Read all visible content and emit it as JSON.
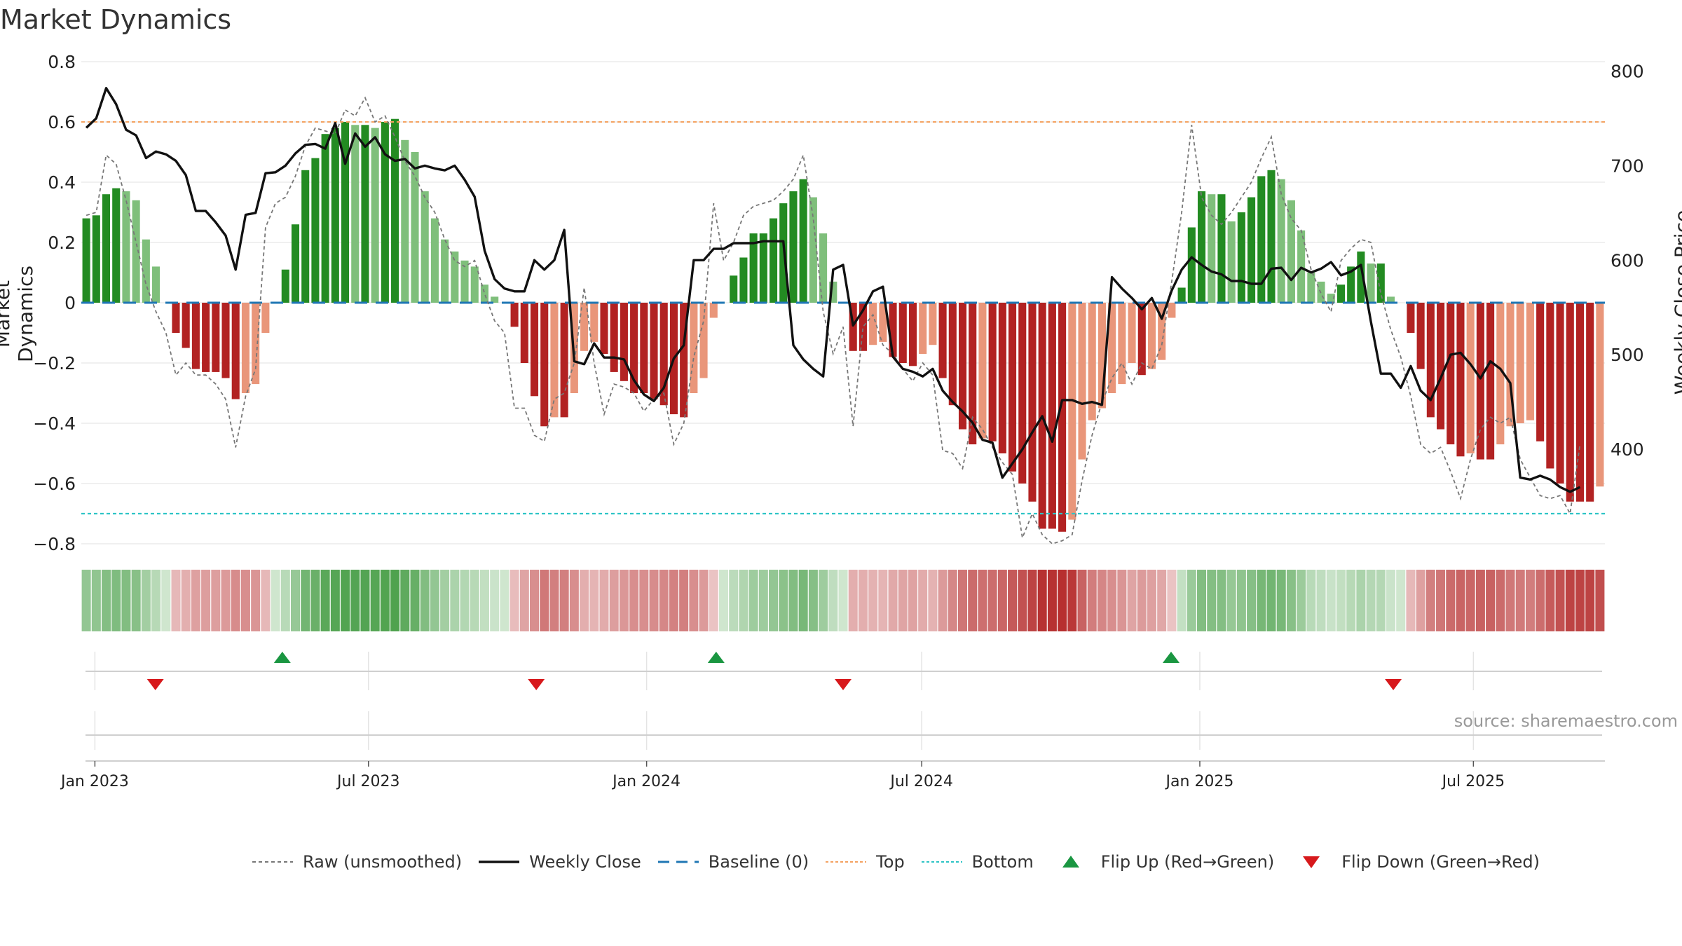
{
  "title": "Market Dynamics",
  "source": "source: sharemaestro.com",
  "colors": {
    "green_strong": "#238b22",
    "green_light": "#7fbf7b",
    "red_strong": "#b22222",
    "red_light": "#e9967a",
    "close": "#111111",
    "raw": "#777777",
    "baseline": "#1f77b4",
    "top": "#f4a261",
    "bottom": "#2ec4c6",
    "flip_up": "#1a9641",
    "flip_down": "#d7191c"
  },
  "chart_data": {
    "type": "bar",
    "title": "Market Dynamics",
    "ylabel": "Market Dynamics",
    "y2label": "Weekly Close Price",
    "ylim": [
      -0.8,
      0.8
    ],
    "y2lim": [
      300,
      810
    ],
    "yticks": [
      "0.8",
      "0.6",
      "0.4",
      "0.2",
      "0",
      "−0.2",
      "−0.4",
      "−0.6",
      "−0.8"
    ],
    "y2ticks": [
      "800",
      "700",
      "600",
      "500",
      "400"
    ],
    "x_start": "2022-12-23",
    "x_end": "2025-09-26",
    "xtick_labels": [
      "Jan 2023",
      "Jul 2023",
      "Jan 2024",
      "Jul 2024",
      "Jan 2025",
      "Jul 2025"
    ],
    "top_line": 0.6,
    "bottom_line": -0.7,
    "baseline": 0,
    "flip_up_dates": [
      "2023-05-05",
      "2024-02-16",
      "2024-12-13"
    ],
    "flip_down_dates": [
      "2023-02-10",
      "2023-10-20",
      "2024-05-10",
      "2025-05-09"
    ],
    "legend": [
      "Raw (unsmoothed)",
      "Weekly Close",
      "Baseline (0)",
      "Top",
      "Bottom",
      "Flip Up (Red→Green)",
      "Flip Down (Green→Red)"
    ],
    "grid": true,
    "series": [
      {
        "name": "Market Dynamics",
        "values": [
          0.28,
          0.29,
          0.36,
          0.38,
          0.37,
          0.34,
          0.21,
          0.12,
          0.0,
          -0.1,
          -0.15,
          -0.22,
          -0.23,
          -0.23,
          -0.25,
          -0.32,
          -0.3,
          -0.27,
          -0.1,
          0.0,
          0.11,
          0.26,
          0.44,
          0.48,
          0.56,
          0.58,
          0.6,
          0.59,
          0.59,
          0.58,
          0.6,
          0.61,
          0.54,
          0.5,
          0.37,
          0.28,
          0.21,
          0.17,
          0.14,
          0.12,
          0.06,
          0.02,
          0.0,
          -0.08,
          -0.2,
          -0.31,
          -0.41,
          -0.38,
          -0.38,
          -0.3,
          -0.16,
          -0.13,
          -0.17,
          -0.23,
          -0.26,
          -0.3,
          -0.3,
          -0.32,
          -0.34,
          -0.37,
          -0.38,
          -0.3,
          -0.25,
          -0.05,
          0.0,
          0.09,
          0.15,
          0.23,
          0.23,
          0.28,
          0.33,
          0.37,
          0.41,
          0.35,
          0.23,
          0.07,
          0.0,
          -0.16,
          -0.16,
          -0.14,
          -0.13,
          -0.18,
          -0.2,
          -0.21,
          -0.17,
          -0.14,
          -0.25,
          -0.34,
          -0.42,
          -0.47,
          -0.45,
          -0.46,
          -0.5,
          -0.56,
          -0.6,
          -0.66,
          -0.75,
          -0.75,
          -0.76,
          -0.72,
          -0.52,
          -0.39,
          -0.35,
          -0.3,
          -0.27,
          -0.2,
          -0.24,
          -0.22,
          -0.19,
          -0.05,
          0.05,
          0.25,
          0.37,
          0.36,
          0.36,
          0.27,
          0.3,
          0.35,
          0.42,
          0.44,
          0.41,
          0.34,
          0.24,
          0.1,
          0.07,
          0.03,
          0.06,
          0.12,
          0.17,
          0.13,
          0.13,
          0.02,
          0.0,
          -0.1,
          -0.22,
          -0.38,
          -0.42,
          -0.47,
          -0.51,
          -0.5,
          -0.52,
          -0.52,
          -0.47,
          -0.41,
          -0.4,
          -0.39,
          -0.46,
          -0.55,
          -0.6,
          -0.66,
          -0.66,
          -0.66,
          -0.61
        ]
      },
      {
        "name": "Weekly Close",
        "values": [
          740,
          750,
          782,
          765,
          738,
          732,
          708,
          715,
          712,
          705,
          690,
          652,
          652,
          640,
          626,
          590,
          648,
          650,
          692,
          693,
          700,
          713,
          722,
          723,
          718,
          745,
          702,
          734,
          720,
          730,
          712,
          705,
          707,
          697,
          700,
          697,
          695,
          700,
          685,
          667,
          610,
          580,
          570,
          567,
          567,
          600,
          590,
          600,
          632,
          493,
          490,
          512,
          497,
          497,
          495,
          473,
          458,
          451,
          465,
          496,
          510,
          600,
          600,
          612,
          612,
          618,
          618,
          618,
          620,
          620,
          620,
          510,
          495,
          485,
          477,
          590,
          595,
          531,
          547,
          567,
          572,
          498,
          485,
          482,
          477,
          485,
          462,
          450,
          440,
          428,
          410,
          407,
          370,
          385,
          400,
          418,
          435,
          408,
          452,
          452,
          448,
          450,
          447,
          582,
          570,
          560,
          548,
          560,
          538,
          568,
          590,
          603,
          595,
          588,
          585,
          578,
          578,
          575,
          575,
          591,
          592,
          579,
          592,
          587,
          591,
          598,
          584,
          588,
          595,
          535,
          480,
          480,
          465,
          488,
          462,
          452,
          475,
          500,
          502,
          490,
          475,
          493,
          485,
          470,
          370,
          368,
          372,
          368,
          360,
          355,
          360
        ],
        "axis": "y2"
      },
      {
        "name": "Raw (unsmoothed)",
        "values": [
          0.29,
          0.3,
          0.49,
          0.46,
          0.34,
          0.2,
          0.06,
          -0.03,
          -0.1,
          -0.24,
          -0.2,
          -0.24,
          -0.24,
          -0.27,
          -0.32,
          -0.48,
          -0.31,
          -0.22,
          0.25,
          0.33,
          0.35,
          0.42,
          0.52,
          0.58,
          0.57,
          0.56,
          0.64,
          0.62,
          0.68,
          0.6,
          0.62,
          0.55,
          0.47,
          0.42,
          0.35,
          0.3,
          0.21,
          0.14,
          0.12,
          0.14,
          0.03,
          -0.06,
          -0.1,
          -0.35,
          -0.35,
          -0.44,
          -0.46,
          -0.32,
          -0.3,
          -0.2,
          0.05,
          -0.2,
          -0.37,
          -0.27,
          -0.28,
          -0.3,
          -0.36,
          -0.32,
          -0.3,
          -0.47,
          -0.4,
          -0.18,
          -0.06,
          0.33,
          0.14,
          0.2,
          0.29,
          0.32,
          0.33,
          0.34,
          0.37,
          0.41,
          0.49,
          0.28,
          -0.03,
          -0.17,
          -0.08,
          -0.41,
          -0.08,
          -0.04,
          -0.14,
          -0.17,
          -0.22,
          -0.26,
          -0.2,
          -0.24,
          -0.49,
          -0.5,
          -0.55,
          -0.38,
          -0.42,
          -0.48,
          -0.53,
          -0.57,
          -0.78,
          -0.7,
          -0.77,
          -0.8,
          -0.79,
          -0.77,
          -0.59,
          -0.44,
          -0.33,
          -0.25,
          -0.2,
          -0.27,
          -0.2,
          -0.22,
          -0.14,
          0.07,
          0.3,
          0.59,
          0.35,
          0.29,
          0.26,
          0.3,
          0.35,
          0.4,
          0.48,
          0.55,
          0.36,
          0.28,
          0.24,
          0.11,
          0.03,
          -0.03,
          0.14,
          0.18,
          0.21,
          0.2,
          0.03,
          -0.09,
          -0.18,
          -0.31,
          -0.47,
          -0.5,
          -0.48,
          -0.56,
          -0.65,
          -0.52,
          -0.42,
          -0.38,
          -0.4,
          -0.38,
          -0.52,
          -0.58,
          -0.64,
          -0.65,
          -0.64,
          -0.7,
          -0.47
        ]
      }
    ]
  }
}
